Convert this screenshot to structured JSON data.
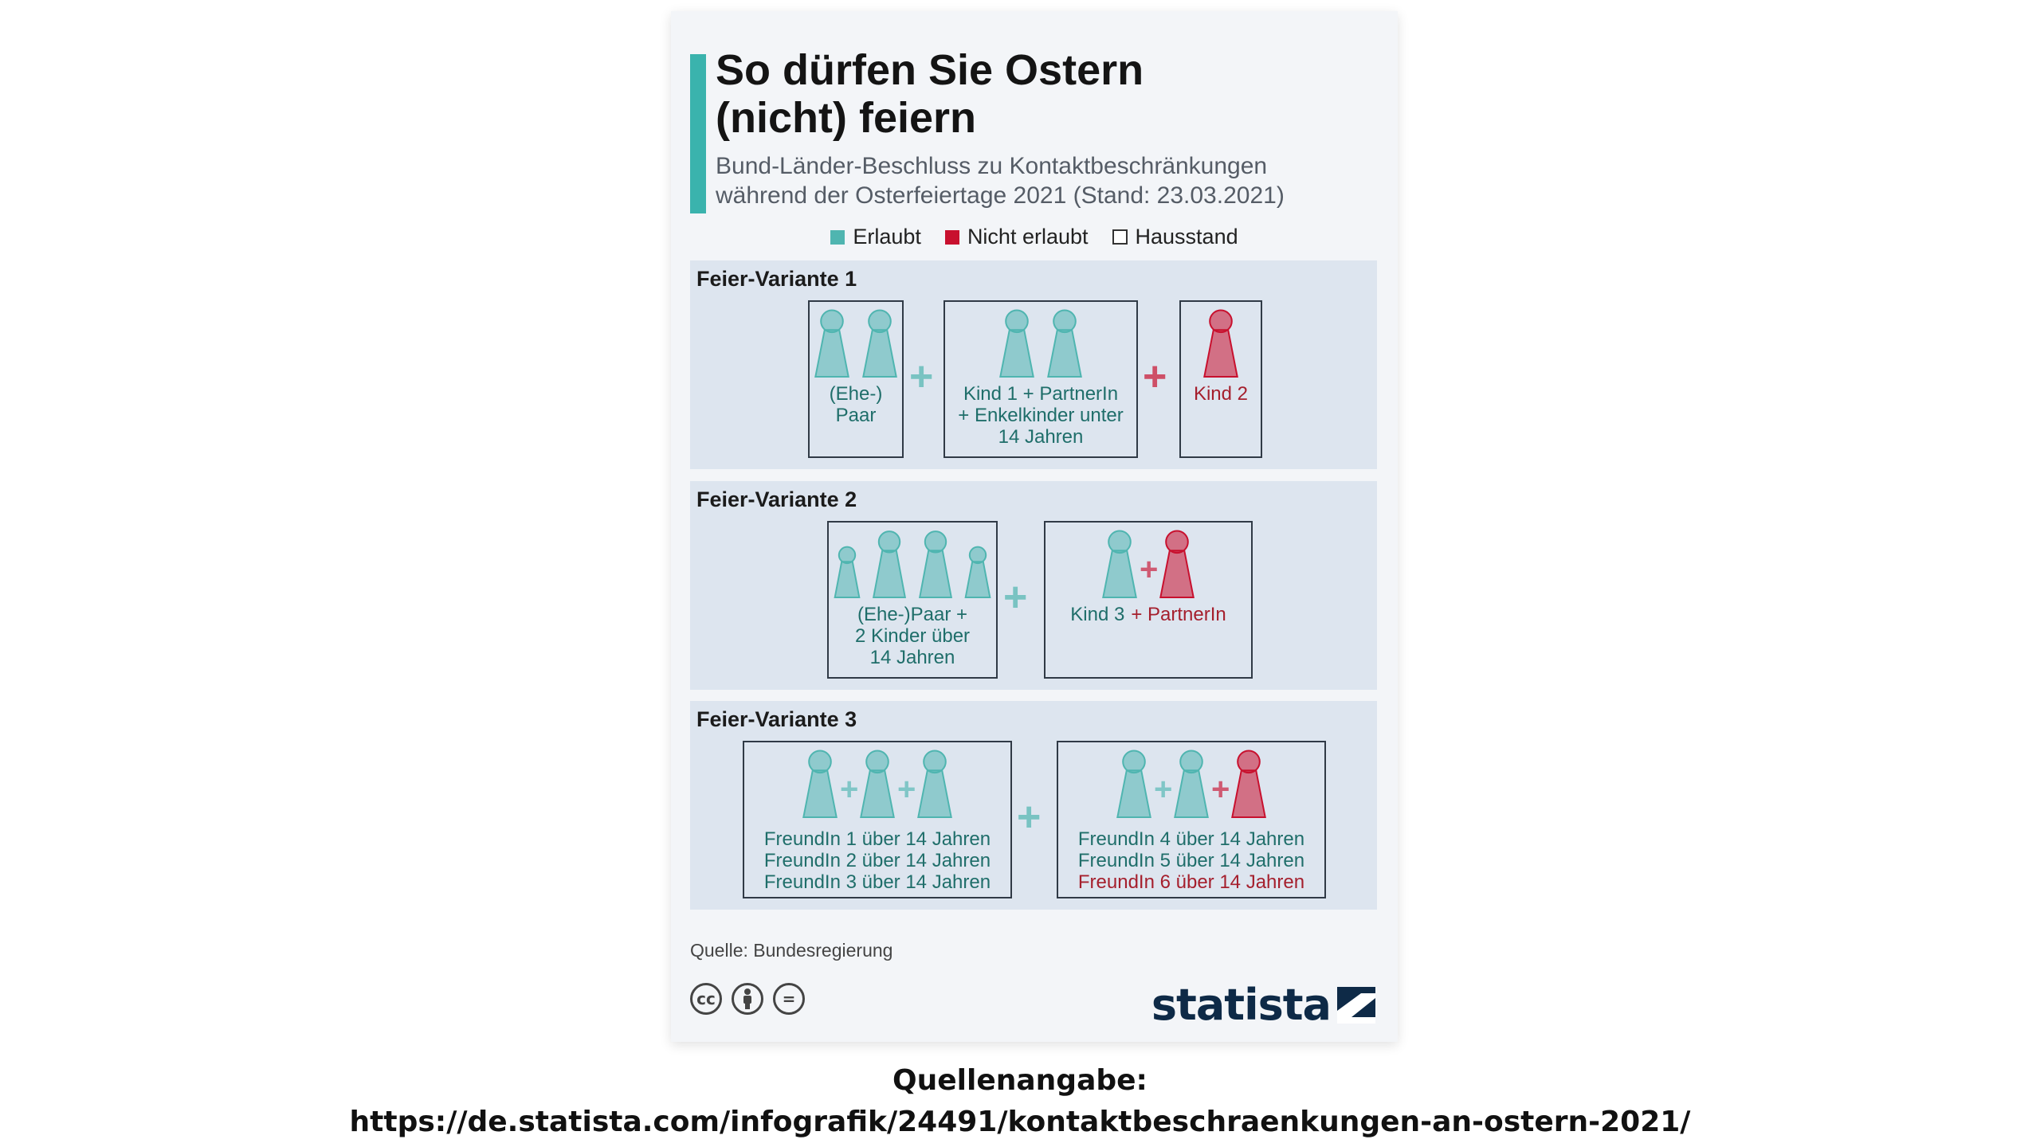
{
  "colors": {
    "allowed": "#4fb5b0",
    "allowed_text": "#1f6e6a",
    "not_allowed": "#c8102e",
    "not_allowed_text": "#a51f2d",
    "accent": "#3ab3ad"
  },
  "title": [
    "So dürfen Sie Ostern",
    "(nicht) feiern"
  ],
  "subtitle": [
    "Bund-Länder-Beschluss zu Kontaktbeschränkungen",
    "während der Osterfeiertage 2021 (Stand: 23.03.2021)"
  ],
  "legend": {
    "allowed": "Erlaubt",
    "not_allowed": "Nicht erlaubt",
    "household": "Hausstand"
  },
  "variants": [
    {
      "title": "Feier-Variante 1",
      "households": [
        {
          "figures": [
            "allowed",
            "allowed"
          ],
          "lines": [
            "(Ehe-)",
            "Paar"
          ],
          "line_status": [
            "allowed",
            "allowed"
          ]
        },
        {
          "figures": [
            "allowed",
            "allowed"
          ],
          "lines": [
            "Kind 1 + PartnerIn",
            "+ Enkelkinder unter",
            "14 Jahren"
          ],
          "line_status": [
            "allowed",
            "allowed",
            "allowed"
          ]
        },
        {
          "figures": [
            "not_allowed"
          ],
          "lines": [
            "Kind 2"
          ],
          "line_status": [
            "not_allowed"
          ]
        }
      ],
      "joins": [
        "allowed",
        "not_allowed"
      ]
    },
    {
      "title": "Feier-Variante 2",
      "households": [
        {
          "figures": [
            "allowed",
            "allowed",
            "allowed",
            "allowed"
          ],
          "lines": [
            "(Ehe-)Paar +",
            "2 Kinder über",
            "14 Jahren"
          ],
          "line_status": [
            "allowed",
            "allowed",
            "allowed"
          ]
        },
        {
          "figures": [
            "allowed",
            "not_allowed"
          ],
          "lines": [
            "Kind 3",
            "+ PartnerIn"
          ],
          "line_status": [
            "allowed",
            "not_allowed"
          ]
        }
      ],
      "joins": [
        "allowed"
      ]
    },
    {
      "title": "Feier-Variante 3",
      "households": [
        {
          "figures": [
            "allowed",
            "allowed",
            "allowed"
          ],
          "lines": [
            "FreundIn 1 über 14 Jahren",
            "FreundIn 2 über 14 Jahren",
            "FreundIn 3 über 14 Jahren"
          ],
          "line_status": [
            "allowed",
            "allowed",
            "allowed"
          ]
        },
        {
          "figures": [
            "allowed",
            "allowed",
            "not_allowed"
          ],
          "lines": [
            "FreundIn 4 über 14 Jahren",
            "FreundIn 5 über 14 Jahren",
            "FreundIn 6 über 14 Jahren"
          ],
          "line_status": [
            "allowed",
            "allowed",
            "not_allowed"
          ]
        }
      ],
      "joins": [
        "allowed"
      ]
    }
  ],
  "source": "Quelle: Bundesregierung",
  "license_icons": [
    "creative-commons-icon",
    "attribution-person-icon",
    "no-derivatives-icon"
  ],
  "brand": "statista",
  "reference": {
    "label": "Quellenangabe:",
    "url": "https://de.statista.com/infografik/24491/kontaktbeschraenkungen-an-ostern-2021/"
  }
}
